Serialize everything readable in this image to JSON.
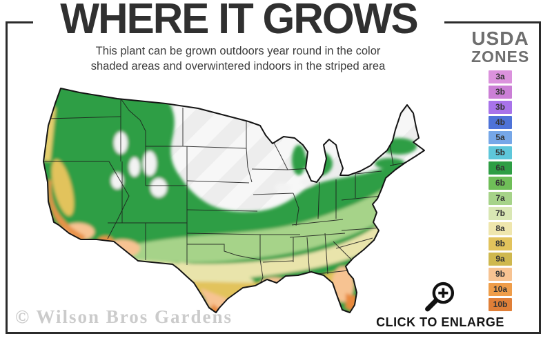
{
  "header": {
    "title": "WHERE IT GROWS",
    "subtitle_line1": "This plant can be grown outdoors year round in the color",
    "subtitle_line2": "shaded areas and overwintered indoors in the striped area"
  },
  "legend": {
    "title_line1": "USDA",
    "title_line2": "ZONES",
    "zones": [
      {
        "label": "3a",
        "color": "#db92dd"
      },
      {
        "label": "3b",
        "color": "#cb7fd6"
      },
      {
        "label": "3b",
        "color": "#a873ea"
      },
      {
        "label": "4b",
        "color": "#4e73d8"
      },
      {
        "label": "5a",
        "color": "#76a7e8"
      },
      {
        "label": "5b",
        "color": "#5ec7da"
      },
      {
        "label": "6a",
        "color": "#2e9e44"
      },
      {
        "label": "6b",
        "color": "#6fbe58"
      },
      {
        "label": "7a",
        "color": "#a6d389"
      },
      {
        "label": "7b",
        "color": "#d9e7b4"
      },
      {
        "label": "8a",
        "color": "#efe6ad"
      },
      {
        "label": "8b",
        "color": "#e2c35c"
      },
      {
        "label": "9a",
        "color": "#cfb84e"
      },
      {
        "label": "9b",
        "color": "#f7c392"
      },
      {
        "label": "10a",
        "color": "#ef9d49"
      },
      {
        "label": "10b",
        "color": "#e07f38"
      }
    ]
  },
  "map": {
    "watermark": "© Wilson Bros Gardens"
  },
  "enlarge": {
    "label": "CLICK TO ENLARGE",
    "icon": "magnifier-plus-icon"
  },
  "colors": {
    "frame": "#2b2b2b",
    "title_text": "#303030",
    "subtitle_text": "#3c3c3c",
    "legend_title_text": "#6e6e6e",
    "watermark_text": "#cbcbcb",
    "enlarge_text": "#141414"
  }
}
